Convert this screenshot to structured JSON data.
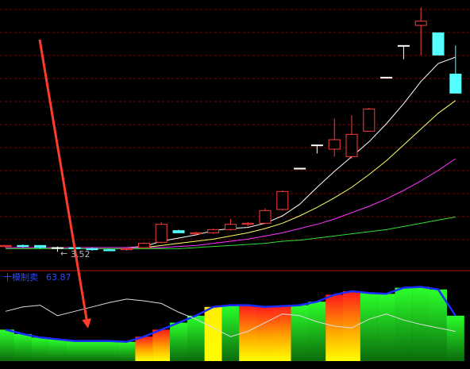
{
  "chart_data": [
    {
      "type": "candlestick",
      "ylim": [
        3.35,
        5.9
      ],
      "up_color": "#ff3b3b",
      "down_color": "#54ffff",
      "flat_color": "#ffffff",
      "open": [
        3.57,
        3.58,
        3.58,
        3.56,
        3.56,
        3.55,
        3.54,
        3.54,
        3.56,
        3.61,
        3.72,
        3.69,
        3.7,
        3.73,
        3.78,
        3.79,
        3.92,
        4.31,
        4.53,
        4.49,
        4.42,
        4.66,
        5.17,
        5.47,
        5.66,
        5.59,
        5.2
      ],
      "high": [
        3.58,
        3.59,
        3.58,
        3.57,
        3.57,
        3.56,
        3.55,
        3.56,
        3.61,
        3.8,
        3.73,
        3.71,
        3.74,
        3.83,
        3.8,
        3.93,
        4.1,
        4.31,
        4.53,
        4.78,
        4.81,
        4.88,
        5.17,
        5.47,
        5.83,
        5.59,
        5.47
      ],
      "low": [
        3.56,
        3.56,
        3.55,
        3.52,
        3.53,
        3.53,
        3.53,
        3.53,
        3.55,
        3.6,
        3.7,
        3.68,
        3.69,
        3.72,
        3.76,
        3.78,
        3.91,
        4.31,
        4.45,
        4.42,
        4.4,
        4.66,
        5.17,
        5.34,
        5.38,
        5.38,
        5.02
      ],
      "close": [
        3.58,
        3.57,
        3.56,
        3.56,
        3.55,
        3.54,
        3.53,
        3.55,
        3.6,
        3.78,
        3.7,
        3.7,
        3.73,
        3.78,
        3.79,
        3.91,
        4.09,
        4.31,
        4.53,
        4.58,
        4.63,
        4.87,
        5.17,
        5.47,
        5.7,
        5.38,
        5.02
      ],
      "series": [
        {
          "color": "#ffffff",
          "values": [
            3.56,
            3.56,
            3.56,
            3.56,
            3.56,
            3.56,
            3.56,
            3.56,
            3.57,
            3.62,
            3.65,
            3.68,
            3.72,
            3.74,
            3.75,
            3.79,
            3.86,
            3.97,
            4.13,
            4.28,
            4.42,
            4.56,
            4.73,
            4.92,
            5.13,
            5.3,
            5.36
          ]
        },
        {
          "color": "#ffff66",
          "values": [
            3.56,
            3.56,
            3.56,
            3.56,
            3.56,
            3.56,
            3.56,
            3.56,
            3.56,
            3.58,
            3.6,
            3.62,
            3.64,
            3.67,
            3.7,
            3.74,
            3.79,
            3.86,
            3.94,
            4.03,
            4.13,
            4.25,
            4.38,
            4.53,
            4.68,
            4.83,
            4.95
          ]
        },
        {
          "color": "#ff33ff",
          "values": [
            3.56,
            3.56,
            3.56,
            3.56,
            3.56,
            3.56,
            3.56,
            3.56,
            3.56,
            3.56,
            3.57,
            3.58,
            3.6,
            3.62,
            3.64,
            3.67,
            3.7,
            3.74,
            3.78,
            3.83,
            3.89,
            3.95,
            4.02,
            4.1,
            4.19,
            4.29,
            4.4
          ]
        },
        {
          "color": "#33dd33",
          "values": [
            3.55,
            3.55,
            3.55,
            3.55,
            3.55,
            3.55,
            3.55,
            3.55,
            3.55,
            3.55,
            3.55,
            3.56,
            3.57,
            3.58,
            3.59,
            3.6,
            3.62,
            3.63,
            3.65,
            3.67,
            3.69,
            3.71,
            3.73,
            3.76,
            3.79,
            3.82,
            3.85
          ]
        }
      ],
      "low_label": "3.52"
    },
    {
      "type": "bar",
      "title": "十模制卖",
      "current_value": 63.87,
      "ylim": [
        0,
        100
      ],
      "values": [
        36,
        31,
        27,
        25,
        23,
        23,
        23,
        22,
        28,
        36,
        44,
        52,
        62,
        64,
        64,
        62,
        63,
        64,
        68,
        76,
        80,
        78,
        77,
        84,
        85,
        82,
        52
      ],
      "colors": [
        "#22dd22",
        "#22dd22",
        "#22dd22",
        "#22dd22",
        "#22dd22",
        "#22dd22",
        "#22dd22",
        "#22dd22",
        "#ff2020",
        "#ff2020",
        "#22dd22",
        "#22dd22",
        "#ffee00",
        "#22dd22",
        "#ff2020",
        "#ff2020",
        "#ff2020",
        "#22dd22",
        "#22dd22",
        "#ff2020",
        "#ff2020",
        "#22dd22",
        "#22dd22",
        "#22dd22",
        "#22dd22",
        "#22dd22",
        "#22dd22"
      ],
      "outline_color": "#1a2cff",
      "line": {
        "color": "#dddddd",
        "values": [
          57,
          62,
          64,
          52,
          57,
          62,
          67,
          71,
          69,
          66,
          56,
          48,
          38,
          28,
          34,
          44,
          54,
          52,
          45,
          40,
          38,
          48,
          54,
          47,
          42,
          38,
          34
        ]
      }
    }
  ]
}
